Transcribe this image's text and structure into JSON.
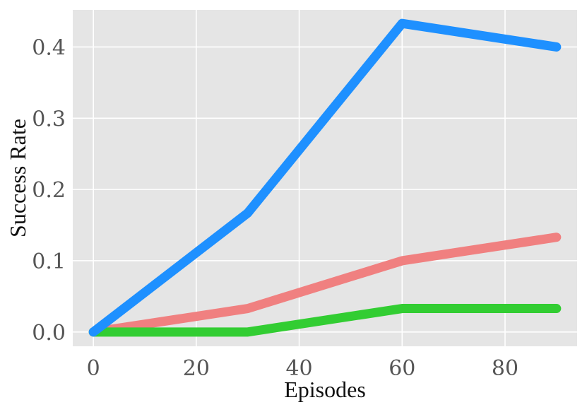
{
  "chart_data": {
    "type": "line",
    "title": "",
    "xlabel": "Episodes",
    "ylabel": "Success Rate",
    "x": [
      0,
      30,
      60,
      90
    ],
    "xlim": [
      -4,
      94
    ],
    "ylim": [
      -0.02,
      0.452
    ],
    "xticks": [
      0,
      20,
      40,
      60,
      80
    ],
    "yticks": [
      0.0,
      0.1,
      0.2,
      0.3,
      0.4
    ],
    "xtick_labels": [
      "0",
      "20",
      "40",
      "60",
      "80"
    ],
    "ytick_labels": [
      "0.0",
      "0.1",
      "0.2",
      "0.3",
      "0.4"
    ],
    "grid": true,
    "background": "#e5e5e5",
    "series": [
      {
        "color": "#f08080",
        "values": [
          0.0,
          0.033,
          0.1,
          0.133
        ]
      },
      {
        "color": "#32cd32",
        "values": [
          0.0,
          0.0,
          0.033,
          0.033
        ]
      },
      {
        "color": "#1e90ff",
        "values": [
          0.0,
          0.167,
          0.433,
          0.4
        ]
      }
    ]
  }
}
